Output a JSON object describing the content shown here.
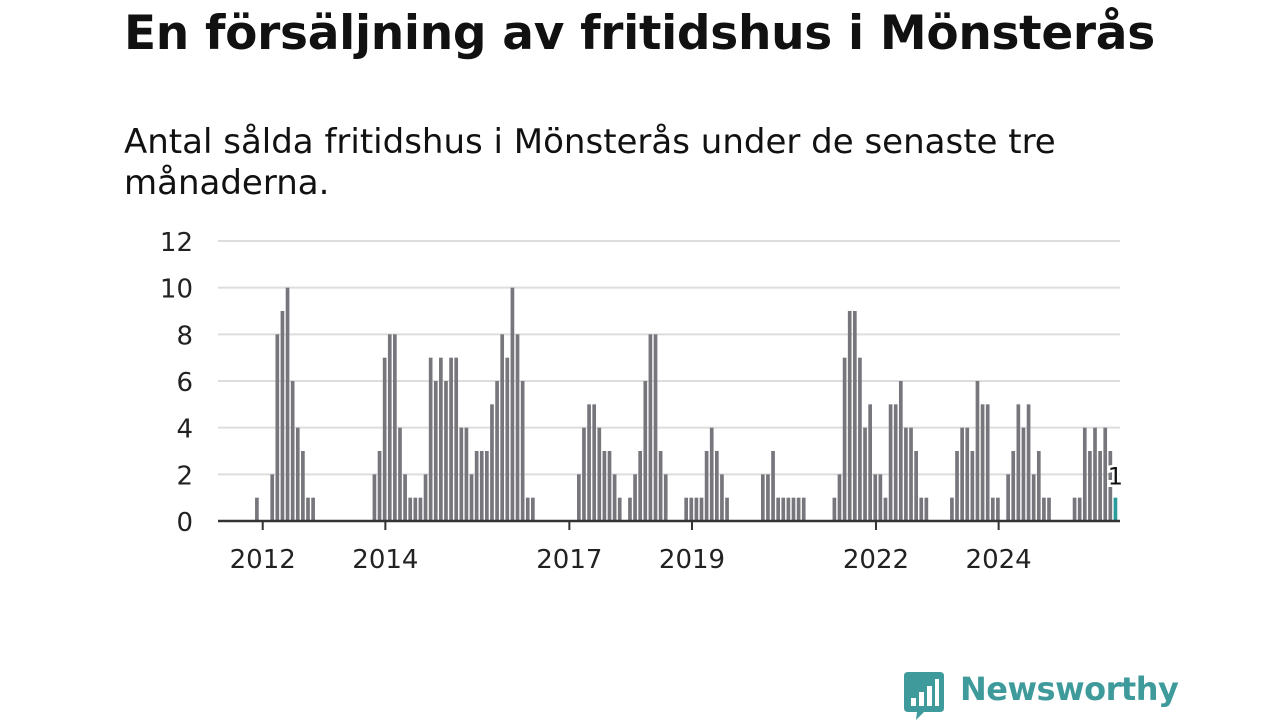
{
  "header": {
    "title": "En försäljning av fritidshus i Mönsterås",
    "subtitle": "Antal sålda fritidshus i Mönsterås under de senaste tre månaderna."
  },
  "brand": {
    "name": "Newsworthy",
    "icon": "bar-chart-speech-bubble-icon",
    "color": "#3f9b9b"
  },
  "colors": {
    "bar": "#76767c",
    "highlight": "#2a9d9b",
    "grid": "#dddddd",
    "axis": "#333333"
  },
  "chart_data": {
    "type": "bar",
    "title": "En försäljning av fritidshus i Mönsterås",
    "subtitle": "Antal sålda fritidshus i Mönsterås under de senaste tre månaderna.",
    "xlabel": "",
    "ylabel": "",
    "ylim": [
      0,
      12
    ],
    "yticks": [
      0,
      2,
      4,
      6,
      8,
      10,
      12
    ],
    "xticks": [
      {
        "label": "2012",
        "x": 2012
      },
      {
        "label": "2014",
        "x": 2014
      },
      {
        "label": "2017",
        "x": 2017
      },
      {
        "label": "2019",
        "x": 2019
      },
      {
        "label": "2022",
        "x": 2022
      },
      {
        "label": "2024",
        "x": 2024
      }
    ],
    "start": "2011-05",
    "grid": true,
    "legend": "none",
    "highlight_last": true,
    "annotation": {
      "text": "1",
      "target": "last"
    },
    "values": [
      0,
      0,
      0,
      0,
      0,
      0,
      0,
      1,
      0,
      0,
      2,
      8,
      9,
      10,
      6,
      4,
      3,
      1,
      1,
      0,
      0,
      0,
      0,
      0,
      0,
      0,
      0,
      0,
      0,
      0,
      2,
      3,
      7,
      8,
      8,
      4,
      2,
      1,
      1,
      1,
      2,
      7,
      6,
      7,
      6,
      7,
      7,
      4,
      4,
      2,
      3,
      3,
      3,
      5,
      6,
      8,
      7,
      10,
      8,
      6,
      1,
      1,
      0,
      0,
      0,
      0,
      0,
      0,
      0,
      0,
      2,
      4,
      5,
      5,
      4,
      3,
      3,
      2,
      1,
      0,
      1,
      2,
      3,
      6,
      8,
      8,
      3,
      2,
      0,
      0,
      0,
      1,
      1,
      1,
      1,
      3,
      4,
      3,
      2,
      1,
      0,
      0,
      0,
      0,
      0,
      0,
      2,
      2,
      3,
      1,
      1,
      1,
      1,
      1,
      1,
      0,
      0,
      0,
      0,
      0,
      1,
      2,
      7,
      9,
      9,
      7,
      4,
      5,
      2,
      2,
      1,
      5,
      5,
      6,
      4,
      4,
      3,
      1,
      1,
      0,
      0,
      0,
      0,
      1,
      3,
      4,
      4,
      3,
      6,
      5,
      5,
      1,
      1,
      0,
      2,
      3,
      5,
      4,
      5,
      2,
      3,
      1,
      1,
      0,
      0,
      0,
      0,
      1,
      1,
      4,
      3,
      4,
      3,
      4,
      3,
      1
    ]
  }
}
